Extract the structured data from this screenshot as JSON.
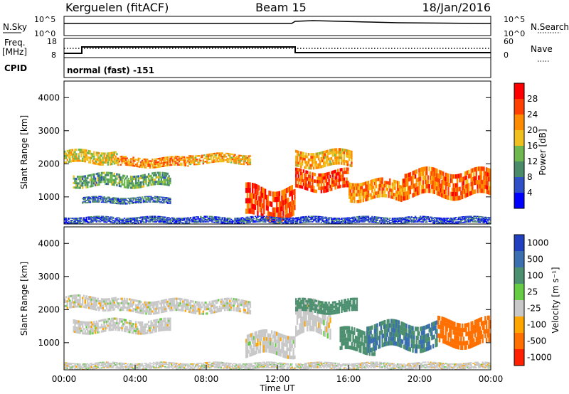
{
  "header": {
    "station": "Kerguelen (fitACF)",
    "beam": "Beam 15",
    "date": "18/Jan/2016"
  },
  "nsky_panel": {
    "left_label": "N.Sky",
    "right_label": "N.Search",
    "left_ticks": [
      "10^5",
      "10^0"
    ],
    "right_ticks": [
      "10^5",
      "10^0"
    ]
  },
  "freq_panel": {
    "left_label_line1": "Freq.",
    "left_label_line2": "[MHz]",
    "right_label": "Nave",
    "cpid_label": "CPID",
    "left_ticks": [
      "18",
      "8"
    ],
    "right_ticks": [
      "60",
      "0"
    ],
    "cpid_text": "normal (fast) -151"
  },
  "chart_data": [
    {
      "type": "heatmap",
      "name": "power",
      "ylabel": "Slant Range [km]",
      "ylim": [
        180,
        4500
      ],
      "yticks": [
        "4000",
        "3000",
        "2000",
        "1000"
      ],
      "colorbar": {
        "label": "Power [dB]",
        "ticks": [
          "28",
          "24",
          "20",
          "16",
          "12",
          "8",
          "4"
        ],
        "range": [
          0,
          32
        ],
        "colors": [
          "#0000ff",
          "#3050c8",
          "#4a8c6a",
          "#6fb850",
          "#f0c020",
          "#ff8c00",
          "#ff4000",
          "#ff0000"
        ]
      },
      "echo_bands": [
        {
          "t0": 0.0,
          "t1": 3.0,
          "r0": 2000,
          "r1": 2400,
          "v": 18
        },
        {
          "t0": 3.0,
          "t1": 7.0,
          "r0": 1900,
          "r1": 2200,
          "v": 22
        },
        {
          "t0": 7.0,
          "t1": 10.5,
          "r0": 2000,
          "r1": 2300,
          "v": 20
        },
        {
          "t0": 0.5,
          "t1": 6.0,
          "r0": 1300,
          "r1": 1700,
          "v": 12
        },
        {
          "t0": 1.0,
          "t1": 6.0,
          "r0": 800,
          "r1": 1000,
          "v": 8
        },
        {
          "t0": 10.2,
          "t1": 13.0,
          "r0": 350,
          "r1": 1300,
          "v": 26
        },
        {
          "t0": 13.0,
          "t1": 16.0,
          "r0": 1200,
          "r1": 1800,
          "v": 26
        },
        {
          "t0": 13.0,
          "t1": 16.2,
          "r0": 1900,
          "r1": 2400,
          "v": 20
        },
        {
          "t0": 16.0,
          "t1": 19.0,
          "r0": 900,
          "r1": 1500,
          "v": 22
        },
        {
          "t0": 19.0,
          "t1": 24.0,
          "r0": 1000,
          "r1": 1800,
          "v": 24
        },
        {
          "t0": 0.0,
          "t1": 24.0,
          "r0": 200,
          "r1": 400,
          "v": 6
        }
      ]
    },
    {
      "type": "heatmap",
      "name": "velocity",
      "ylabel": "Slant Range [km]",
      "xlabel": "Time UT",
      "ylim": [
        180,
        4500
      ],
      "yticks": [
        "4000",
        "3000",
        "2000",
        "1000"
      ],
      "xticks": [
        "00:00",
        "04:00",
        "08:00",
        "12:00",
        "16:00",
        "20:00",
        "00:00"
      ],
      "xlim": [
        0,
        24
      ],
      "colorbar": {
        "label": "Velocity [m s⁻¹]",
        "ticks": [
          "1000",
          "500",
          "100",
          "25",
          "-25",
          "-100",
          "-500",
          "-1000"
        ],
        "colors": [
          "#2040c0",
          "#3b6fb0",
          "#4c9070",
          "#66cc44",
          "#c8c8c8",
          "#ffa500",
          "#ff7000",
          "#ff2000"
        ]
      },
      "echo_bands": [
        {
          "t0": 0.0,
          "t1": 3.0,
          "r0": 2000,
          "r1": 2400,
          "v": 0
        },
        {
          "t0": 3.0,
          "t1": 10.5,
          "r0": 1900,
          "r1": 2300,
          "v": 0
        },
        {
          "t0": 0.5,
          "t1": 6.0,
          "r0": 1300,
          "r1": 1700,
          "v": 0
        },
        {
          "t0": 10.2,
          "t1": 13.0,
          "r0": 600,
          "r1": 1300,
          "v": 0
        },
        {
          "t0": 13.0,
          "t1": 15.0,
          "r0": 1200,
          "r1": 2200,
          "v": 0
        },
        {
          "t0": 13.0,
          "t1": 16.5,
          "r0": 1900,
          "r1": 2300,
          "v": 100
        },
        {
          "t0": 15.5,
          "t1": 17.5,
          "r0": 700,
          "r1": 1400,
          "v": 150
        },
        {
          "t0": 17.0,
          "t1": 21.0,
          "r0": 800,
          "r1": 1600,
          "v": 300
        },
        {
          "t0": 21.0,
          "t1": 24.0,
          "r0": 900,
          "r1": 1700,
          "v": -150
        },
        {
          "t0": 0.0,
          "t1": 24.0,
          "r0": 200,
          "r1": 400,
          "v": 0
        }
      ]
    }
  ]
}
